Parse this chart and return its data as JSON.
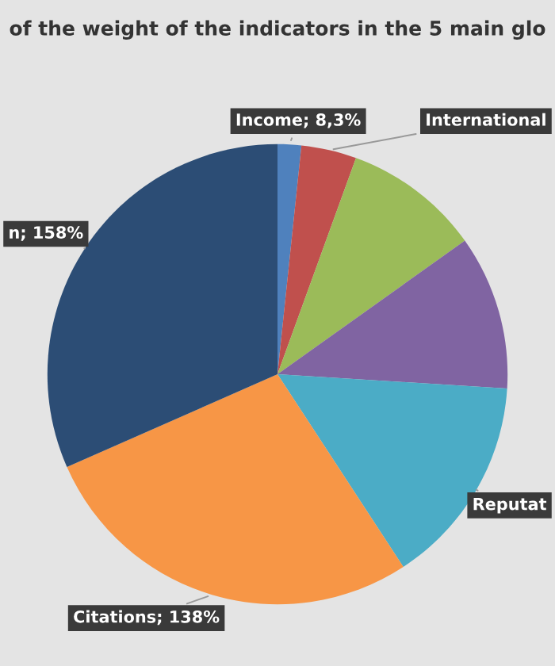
{
  "chart_data": {
    "type": "pie",
    "title": "of the weight of the indicators in the 5 main glo",
    "categories": [
      "Income",
      "International",
      null,
      null,
      "Reputat",
      "Citations",
      "n"
    ],
    "values": [
      8.3,
      19.4,
      48,
      54.2,
      74,
      138,
      158
    ],
    "value_labels": [
      "8,3%",
      null,
      null,
      null,
      null,
      "138%",
      "158%"
    ],
    "colors": [
      "#4f81bd",
      "#c0504d",
      "#9bbb59",
      "#8064a2",
      "#4bacc6",
      "#f79646",
      "#2c4d75"
    ],
    "legend": false
  }
}
